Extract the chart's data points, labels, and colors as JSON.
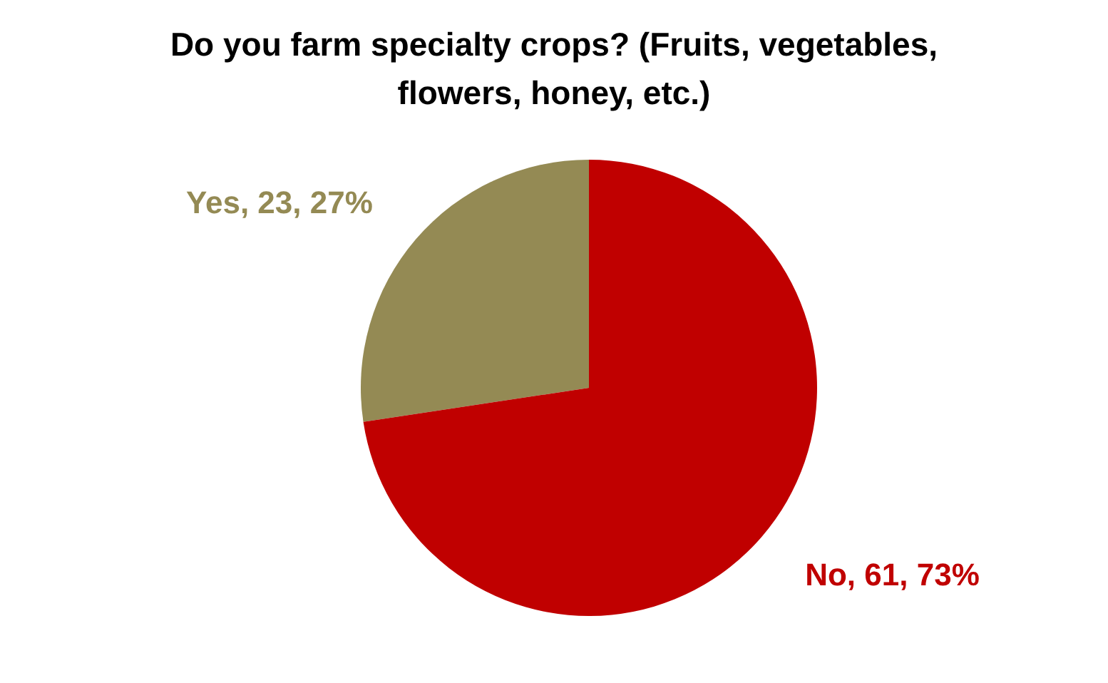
{
  "chart_data": {
    "type": "pie",
    "title": "Do you farm specialty crops? (Fruits, vegetables, flowers, honey, etc.)",
    "categories": [
      "Yes",
      "No"
    ],
    "values": [
      23,
      61
    ],
    "colors": [
      "#948a54",
      "#c00000"
    ],
    "value_labels": [
      ", 23, 27%",
      ", 61, 73%"
    ],
    "legend": false
  }
}
